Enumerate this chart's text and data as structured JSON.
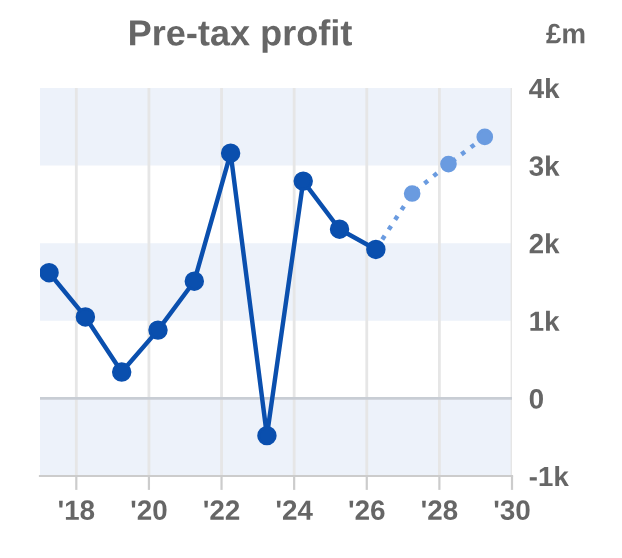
{
  "chart_data": {
    "type": "line",
    "title": "Pre-tax profit",
    "ylabel": "£m",
    "series": [
      {
        "color": "#0a4fae",
        "line_style": "solid",
        "x": [
          2017.25,
          2018.25,
          2019.25,
          2020.25,
          2021.25,
          2022.25,
          2023.25,
          2024.25,
          2025.25,
          2026.25
        ],
        "values": [
          1620,
          1050,
          340,
          880,
          1510,
          3160,
          -480,
          2800,
          2180,
          1920
        ]
      },
      {
        "color": "#6a9be0",
        "line_style": "dotted",
        "x": [
          2026.25,
          2027.25,
          2028.25,
          2029.25
        ],
        "values": [
          1920,
          2640,
          3020,
          3370
        ]
      }
    ],
    "marker": "circle",
    "xlim": [
      2017,
      2030
    ],
    "xticks": [
      {
        "value": 2018,
        "label": "'18"
      },
      {
        "value": 2020,
        "label": "'20"
      },
      {
        "value": 2022,
        "label": "'22"
      },
      {
        "value": 2024,
        "label": "'24"
      },
      {
        "value": 2026,
        "label": "'26"
      },
      {
        "value": 2028,
        "label": "'28"
      },
      {
        "value": 2030,
        "label": "'30"
      }
    ],
    "ylim": [
      -1000,
      4000
    ],
    "yticks": [
      {
        "value": -1000,
        "label": "-1k"
      },
      {
        "value": 0,
        "label": "0"
      },
      {
        "value": 1000,
        "label": "1k"
      },
      {
        "value": 2000,
        "label": "2k"
      },
      {
        "value": 3000,
        "label": "3k"
      },
      {
        "value": 4000,
        "label": "4k"
      }
    ],
    "grid": "x",
    "bands": [
      {
        "axis": "y",
        "from": 3000,
        "to": 4000,
        "color": "#edf2fa"
      },
      {
        "axis": "y",
        "from": 1000,
        "to": 2000,
        "color": "#edf2fa"
      },
      {
        "axis": "y",
        "from": -1000,
        "to": 0,
        "color": "#edf2fa"
      }
    ],
    "ref_lines": [
      {
        "axis": "y",
        "value": 0,
        "color": "#c8cdd4"
      }
    ]
  }
}
